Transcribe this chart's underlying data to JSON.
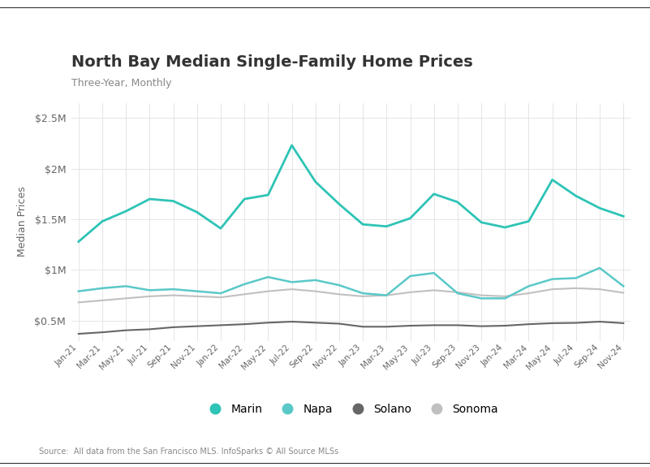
{
  "title": "North Bay Median Single-Family Home Prices",
  "subtitle": "Three-Year, Monthly",
  "ylabel": "Median Prices",
  "source": "Source:  All data from the San Francisco MLS. InfoSparks © All Source MLSs",
  "ylim": [
    300000,
    2650000
  ],
  "yticks": [
    500000,
    1000000,
    1500000,
    2000000,
    2500000
  ],
  "ytick_labels": [
    "$0.5M",
    "$1M",
    "$1.5M",
    "$2M",
    "$2.5M"
  ],
  "x_labels": [
    "Jan-21",
    "Mar-21",
    "May-21",
    "Jul-21",
    "Sep-21",
    "Nov-21",
    "Jan-22",
    "Mar-22",
    "May-22",
    "Jul-22",
    "Sep-22",
    "Nov-22",
    "Jan-23",
    "Mar-23",
    "May-23",
    "Jul-23",
    "Sep-23",
    "Nov-23",
    "Jan-24",
    "Mar-24",
    "May-24",
    "Jul-24",
    "Sep-24",
    "Nov-24"
  ],
  "marin_color": "#2ec4b6",
  "napa_color": "#5bc8c8",
  "solano_color": "#666666",
  "sonoma_color": "#c0c0c0",
  "marin": [
    1280000,
    1480000,
    1580000,
    1700000,
    1680000,
    1570000,
    1410000,
    1700000,
    1740000,
    2230000,
    1870000,
    1650000,
    1450000,
    1430000,
    1510000,
    1750000,
    1670000,
    1470000,
    1420000,
    1480000,
    1890000,
    1730000,
    1610000,
    1530000
  ],
  "napa": [
    790000,
    820000,
    840000,
    800000,
    810000,
    790000,
    770000,
    860000,
    930000,
    880000,
    900000,
    850000,
    770000,
    750000,
    940000,
    970000,
    770000,
    720000,
    720000,
    840000,
    910000,
    920000,
    1020000,
    840000
  ],
  "solano": [
    370000,
    385000,
    405000,
    415000,
    435000,
    445000,
    455000,
    465000,
    480000,
    490000,
    480000,
    470000,
    440000,
    440000,
    450000,
    455000,
    455000,
    445000,
    450000,
    465000,
    475000,
    478000,
    490000,
    475000
  ],
  "sonoma": [
    680000,
    700000,
    720000,
    740000,
    750000,
    740000,
    730000,
    760000,
    790000,
    810000,
    790000,
    760000,
    740000,
    750000,
    780000,
    800000,
    780000,
    750000,
    740000,
    770000,
    810000,
    820000,
    810000,
    775000
  ]
}
